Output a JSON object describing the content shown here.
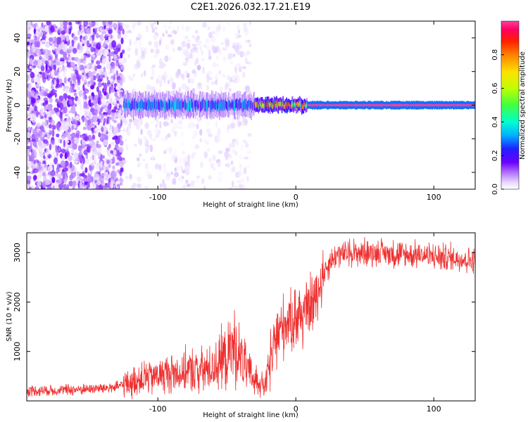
{
  "title": "C2E1.2026.032.17.21.E19",
  "chart_data": [
    {
      "type": "heatmap",
      "xlabel": "Height of straight line (km)",
      "ylabel": "Frequency (Hz)",
      "xlim": [
        -195,
        130
      ],
      "ylim": [
        -50,
        50
      ],
      "xticks": [
        -100,
        0,
        100
      ],
      "yticks": [
        -40,
        -20,
        0,
        20,
        40
      ],
      "colorbar": {
        "label": "Normalized spectral amplitude",
        "range": [
          0.0,
          1.0
        ],
        "ticks": [
          0.0,
          0.2,
          0.4,
          0.6,
          0.8
        ],
        "tick_labels": [
          "0.0",
          "0.2",
          "0.4",
          "0.6",
          "0.8"
        ],
        "colors": [
          "#ffffff",
          "#e8d8ff",
          "#b070ff",
          "#6a00ff",
          "#2020ff",
          "#00b0ff",
          "#00ffd0",
          "#40ff40",
          "#c0ff00",
          "#ffe000",
          "#ff8000",
          "#ff2000",
          "#ff0060",
          "#ff40a0"
        ]
      },
      "regions": [
        {
          "name": "dense-noise",
          "x_range": [
            -195,
            -125
          ],
          "freq_range": [
            -50,
            50
          ],
          "amplitude": 0.12
        },
        {
          "name": "sparse-noise",
          "x_range": [
            -125,
            -33
          ],
          "freq_range": [
            -50,
            50
          ],
          "amplitude": 0.05
        },
        {
          "name": "emerging-band",
          "x_range": [
            -125,
            -30
          ],
          "freq_center": 0,
          "freq_halfwidth": 6,
          "amplitude": 0.35
        },
        {
          "name": "transition-band",
          "x_range": [
            -30,
            8
          ],
          "freq_center": 0,
          "freq_halfwidth": 3,
          "amplitude": 0.75
        },
        {
          "name": "steady-band",
          "x_range": [
            8,
            130
          ],
          "freq_center": 0,
          "freq_halfwidth": 1.5,
          "amplitude": 1.0
        }
      ]
    },
    {
      "type": "line",
      "xlabel": "Height of straight line (km)",
      "ylabel": "SNR (10 * v/v)",
      "xlim": [
        -195,
        130
      ],
      "ylim": [
        0,
        3400
      ],
      "xticks": [
        -100,
        0,
        100
      ],
      "yticks": [
        1000,
        2000,
        3000
      ],
      "color": "#ee3030",
      "series": [
        {
          "name": "SNR",
          "x": [
            -195,
            -170,
            -150,
            -130,
            -120,
            -110,
            -100,
            -90,
            -80,
            -70,
            -60,
            -50,
            -45,
            -40,
            -35,
            -30,
            -25,
            -22,
            -20,
            -15,
            -10,
            -5,
            0,
            5,
            10,
            15,
            20,
            25,
            30,
            40,
            50,
            60,
            70,
            80,
            90,
            100,
            110,
            120,
            130
          ],
          "y": [
            200,
            220,
            240,
            280,
            380,
            450,
            520,
            560,
            600,
            620,
            680,
            900,
            1100,
            900,
            600,
            450,
            350,
            300,
            600,
            1200,
            1500,
            1650,
            1700,
            1750,
            1900,
            2100,
            2600,
            2800,
            2950,
            3000,
            3000,
            3000,
            2980,
            2950,
            2950,
            2920,
            2900,
            2880,
            2850
          ]
        }
      ]
    }
  ]
}
